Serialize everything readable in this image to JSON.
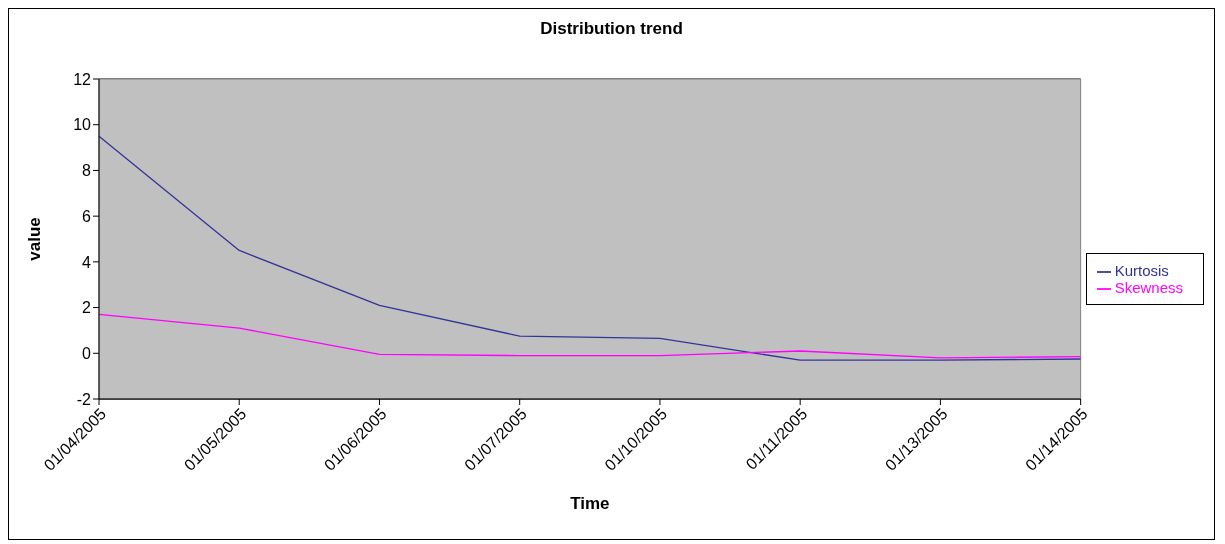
{
  "chart_data": {
    "type": "line",
    "title": "Distribution trend",
    "xlabel": "Time",
    "ylabel": "value",
    "categories": [
      "01/04/2005",
      "01/05/2005",
      "01/06/2005",
      "01/07/2005",
      "01/10/2005",
      "01/11/2005",
      "01/13/2005",
      "01/14/2005"
    ],
    "series": [
      {
        "name": "Kurtosis",
        "color": "#333399",
        "values": [
          9.5,
          4.5,
          2.1,
          0.75,
          0.65,
          -0.3,
          -0.3,
          -0.25
        ]
      },
      {
        "name": "Skewness",
        "color": "#ff00ff",
        "values": [
          1.7,
          1.1,
          -0.05,
          -0.1,
          -0.1,
          0.1,
          -0.2,
          -0.15
        ]
      }
    ],
    "ylim": [
      -2,
      12
    ],
    "yticks": [
      -2,
      0,
      2,
      4,
      6,
      8,
      10,
      12
    ],
    "grid": "y",
    "legend": "right",
    "marker": "none",
    "line_style": "solid"
  }
}
